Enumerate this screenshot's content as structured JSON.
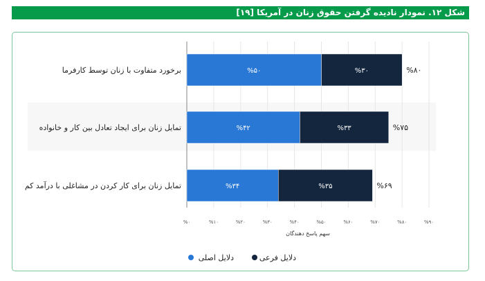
{
  "title": "شکل ۱۲. نمودار نادیده گرفتن حقوق زنان در آمریکا [۱۹]",
  "chart_data": {
    "type": "bar",
    "orientation": "horizontal",
    "stacked": true,
    "title": "شکل ۱۲. نمودار نادیده گرفتن حقوق زنان در آمریکا [۱۹]",
    "categories": [
      "برخورد متفاوت با زنان توسط کارفرما",
      "تمایل زنان برای ایجاد تعادل بین کار و خانواده",
      "تمایل زنان برای کار کردن در مشاغلی با درآمد کم"
    ],
    "series": [
      {
        "name": "دلایل اصلی",
        "values": [
          50,
          42,
          34
        ],
        "labels": [
          "%۵۰",
          "%۴۲",
          "%۳۴"
        ],
        "color": "#2a78d6"
      },
      {
        "name": "دلایل فرعی",
        "values": [
          30,
          33,
          35
        ],
        "labels": [
          "%۳۰",
          "%۳۳",
          "%۳۵"
        ],
        "color": "#13263d"
      }
    ],
    "totals": [
      80,
      75,
      69
    ],
    "total_labels": [
      "%۸۰",
      "%۷۵",
      "%۶۹"
    ],
    "xlabel": "سهم پاسخ دهندگان",
    "ylabel": "",
    "xlim": [
      0,
      90
    ],
    "x_ticks": [
      0,
      10,
      20,
      30,
      40,
      50,
      60,
      70,
      80,
      90
    ],
    "x_tick_labels": [
      "%۰",
      "%۱۰",
      "%۲۰",
      "%۳۰",
      "%۴۰",
      "%۵۰",
      "%۶۰",
      "%۷۰",
      "%۸۰",
      "%۹۰"
    ],
    "grid": true,
    "legend": "bottom-center"
  }
}
